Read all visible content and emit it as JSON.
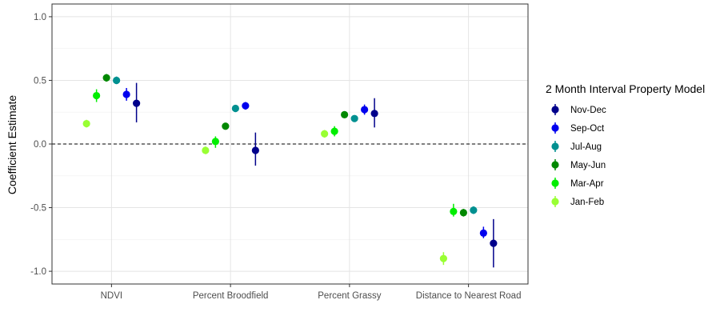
{
  "chart_data": {
    "type": "scatter",
    "subtype": "point-range (dodged coefficient estimates with intervals)",
    "title": "",
    "xlabel": "",
    "ylabel": "Coefficient Estimate",
    "ylim": [
      -1.1,
      1.1
    ],
    "yticks": [
      "-1.0",
      "-0.5",
      "0.0",
      "0.5",
      "1.0"
    ],
    "categories": [
      "NDVI",
      "Percent Broodfield",
      "Percent Grassy",
      "Distance to Nearest Road"
    ],
    "reference_line": {
      "y": 0.0,
      "style": "dashed"
    },
    "grid": true,
    "legend": {
      "title": "2 Month Interval Property Model",
      "position": "right"
    },
    "series": [
      {
        "name": "Jan-Feb",
        "color": "#99ff33",
        "values": [
          0.16,
          -0.05,
          0.08,
          -0.9
        ],
        "lower": [
          0.13,
          -0.08,
          0.05,
          -0.95
        ],
        "upper": [
          0.19,
          -0.02,
          0.11,
          -0.85
        ]
      },
      {
        "name": "Mar-Apr",
        "color": "#00ee00",
        "values": [
          0.38,
          0.02,
          0.1,
          -0.53
        ],
        "lower": [
          0.33,
          -0.03,
          0.06,
          -0.57
        ],
        "upper": [
          0.43,
          0.06,
          0.14,
          -0.47
        ]
      },
      {
        "name": "May-Jun",
        "color": "#008800",
        "values": [
          0.52,
          0.14,
          0.23,
          -0.54
        ],
        "lower": [
          0.49,
          0.12,
          0.21,
          -0.57
        ],
        "upper": [
          0.55,
          0.16,
          0.25,
          -0.51
        ]
      },
      {
        "name": "Jul-Aug",
        "color": "#009090",
        "values": [
          0.5,
          0.28,
          0.2,
          -0.52
        ],
        "lower": [
          0.47,
          0.25,
          0.18,
          -0.55
        ],
        "upper": [
          0.53,
          0.3,
          0.22,
          -0.49
        ]
      },
      {
        "name": "Sep-Oct",
        "color": "#0000ee",
        "values": [
          0.39,
          0.3,
          0.27,
          -0.7
        ],
        "lower": [
          0.34,
          0.27,
          0.23,
          -0.74
        ],
        "upper": [
          0.44,
          0.33,
          0.31,
          -0.65
        ]
      },
      {
        "name": "Nov-Dec",
        "color": "#00008b",
        "values": [
          0.32,
          -0.05,
          0.24,
          -0.78
        ],
        "lower": [
          0.17,
          -0.17,
          0.13,
          -0.97
        ],
        "upper": [
          0.48,
          0.09,
          0.36,
          -0.59
        ]
      }
    ],
    "legend_order": [
      "Nov-Dec",
      "Sep-Oct",
      "Jul-Aug",
      "May-Jun",
      "Mar-Apr",
      "Jan-Feb"
    ]
  }
}
